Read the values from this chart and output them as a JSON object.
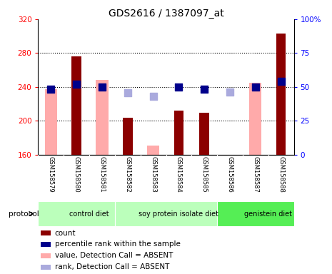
{
  "title": "GDS2616 / 1387097_at",
  "samples": [
    "GSM158579",
    "GSM158580",
    "GSM158581",
    "GSM158582",
    "GSM158583",
    "GSM158584",
    "GSM158585",
    "GSM158586",
    "GSM158587",
    "GSM158588"
  ],
  "count_values": [
    null,
    276,
    null,
    204,
    null,
    212,
    210,
    null,
    null,
    303
  ],
  "value_absent": [
    237,
    null,
    248,
    null,
    171,
    null,
    null,
    null,
    245,
    null
  ],
  "prank_present": [
    237,
    243,
    240,
    null,
    null,
    240,
    237,
    null,
    240,
    247
  ],
  "prank_absent": [
    null,
    null,
    null,
    233,
    229,
    null,
    null,
    234,
    null,
    null
  ],
  "ylim_left": [
    160,
    320
  ],
  "ylim_right": [
    0,
    100
  ],
  "yticks_left": [
    160,
    200,
    240,
    280,
    320
  ],
  "yticks_right": [
    0,
    25,
    50,
    75,
    100
  ],
  "ytick_labels_right": [
    "0",
    "25",
    "50",
    "75",
    "100%"
  ],
  "bar_color_count": "#8B0000",
  "bar_color_absent": "#ffaaaa",
  "dot_color_rank": "#00008B",
  "dot_color_absent": "#aaaadd",
  "bar_width": 0.38,
  "dot_size": 48,
  "groups": [
    {
      "label": "control diet",
      "start": 0,
      "end": 3,
      "color": "#bbffbb"
    },
    {
      "label": "soy protein isolate diet",
      "start": 3,
      "end": 7,
      "color": "#bbffbb"
    },
    {
      "label": "genistein diet",
      "start": 7,
      "end": 10,
      "color": "#55ee55"
    }
  ],
  "legend_items": [
    {
      "label": "count",
      "color": "#8B0000"
    },
    {
      "label": "percentile rank within the sample",
      "color": "#00008B"
    },
    {
      "label": "value, Detection Call = ABSENT",
      "color": "#ffaaaa"
    },
    {
      "label": "rank, Detection Call = ABSENT",
      "color": "#aaaadd"
    }
  ]
}
